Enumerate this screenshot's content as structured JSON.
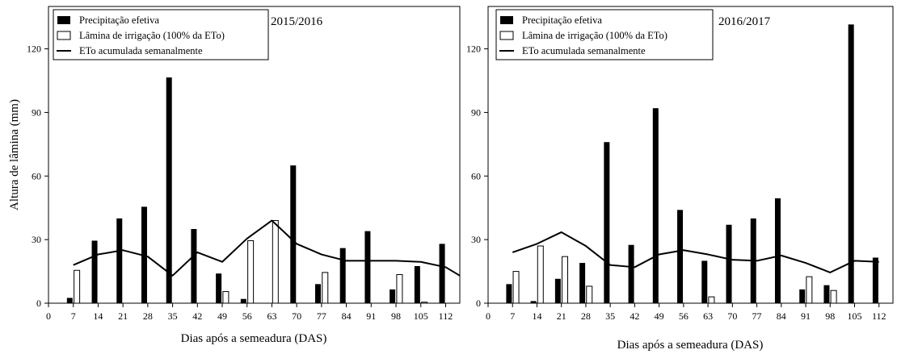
{
  "chart_data": [
    {
      "type": "bar",
      "panel_label": "2015/2016",
      "xlabel": "Dias após a semeadura (DAS)",
      "ylabel": "Altura de lâmina (mm)",
      "xlim": [
        0,
        116
      ],
      "ylim": [
        0,
        140
      ],
      "xticks": [
        0,
        7,
        14,
        21,
        28,
        35,
        42,
        49,
        56,
        63,
        70,
        77,
        84,
        91,
        98,
        105,
        112
      ],
      "yticks": [
        0,
        30,
        60,
        90,
        120
      ],
      "legend": {
        "position": "top-left",
        "entries": [
          {
            "label": "Precipitação efetiva",
            "style": "solid-black-bar"
          },
          {
            "label": "Lâmina de irrigação (100% da ETo)",
            "style": "hollow-bar"
          },
          {
            "label": "ETo acumulada semanalmente",
            "style": "line"
          }
        ]
      },
      "series": [
        {
          "name": "Precipitação efetiva",
          "kind": "bar",
          "color": "#000000",
          "x": [
            6,
            13,
            20,
            27,
            34,
            41,
            48,
            55,
            69,
            76,
            83,
            90,
            97,
            104,
            111
          ],
          "values": [
            2.5,
            29.5,
            40,
            45.5,
            106.5,
            35,
            14,
            2,
            65,
            9,
            26,
            34,
            6.5,
            17.5,
            28
          ]
        },
        {
          "name": "Lâmina de irrigação (100% da ETo)",
          "kind": "bar",
          "color": "#ffffff",
          "x": [
            8,
            50,
            57,
            64,
            78,
            99,
            106
          ],
          "values": [
            15.5,
            5.5,
            29.5,
            39,
            14.5,
            13.5,
            0.5
          ]
        },
        {
          "name": "ETo acumulada semanalmente",
          "kind": "line",
          "color": "#000000",
          "x": [
            7,
            14,
            21,
            28,
            35,
            42,
            49,
            56,
            63,
            70,
            77,
            84,
            91,
            98,
            105,
            112,
            116
          ],
          "values": [
            18,
            23,
            25,
            22,
            13,
            24,
            19.5,
            30.5,
            39,
            28,
            23,
            20,
            20,
            20,
            19.5,
            17,
            13
          ]
        }
      ]
    },
    {
      "type": "bar",
      "panel_label": "2016/2017",
      "xlabel": "Dias após a semeadura (DAS)",
      "ylabel": "",
      "xlim": [
        0,
        116
      ],
      "ylim": [
        0,
        140
      ],
      "xticks": [
        0,
        7,
        14,
        21,
        28,
        35,
        42,
        49,
        56,
        63,
        70,
        77,
        84,
        91,
        98,
        105,
        112
      ],
      "yticks": [
        0,
        30,
        60,
        90,
        120
      ],
      "legend": {
        "position": "top-left",
        "entries": [
          {
            "label": "Precipitação efetiva",
            "style": "solid-black-bar"
          },
          {
            "label": "Lâmina de irrigação (100% da ETo)",
            "style": "hollow-bar"
          },
          {
            "label": "ETo acumulada semanalmente",
            "style": "line"
          }
        ]
      },
      "series": [
        {
          "name": "Precipitação efetiva",
          "kind": "bar",
          "color": "#000000",
          "x": [
            6,
            13,
            20,
            27,
            34,
            41,
            48,
            55,
            62,
            69,
            76,
            83,
            90,
            97,
            104,
            111
          ],
          "values": [
            9,
            1,
            11.5,
            19,
            76,
            27.5,
            92,
            44,
            20,
            37,
            40,
            49.5,
            6.5,
            8.5,
            131.5,
            21.5
          ]
        },
        {
          "name": "Lâmina de irrigação (100% da ETo)",
          "kind": "bar",
          "color": "#ffffff",
          "x": [
            8,
            15,
            22,
            29,
            64,
            92,
            99
          ],
          "values": [
            15,
            27,
            22,
            8,
            3,
            12.5,
            6
          ]
        },
        {
          "name": "ETo acumulada semanalmente",
          "kind": "line",
          "color": "#000000",
          "x": [
            7,
            14,
            21,
            28,
            35,
            42,
            49,
            56,
            63,
            70,
            77,
            84,
            91,
            98,
            105,
            112
          ],
          "values": [
            24,
            28,
            33.5,
            27,
            18,
            17,
            23,
            25,
            23,
            20.5,
            20,
            22.5,
            19,
            14.5,
            20,
            19.5
          ]
        }
      ]
    }
  ]
}
